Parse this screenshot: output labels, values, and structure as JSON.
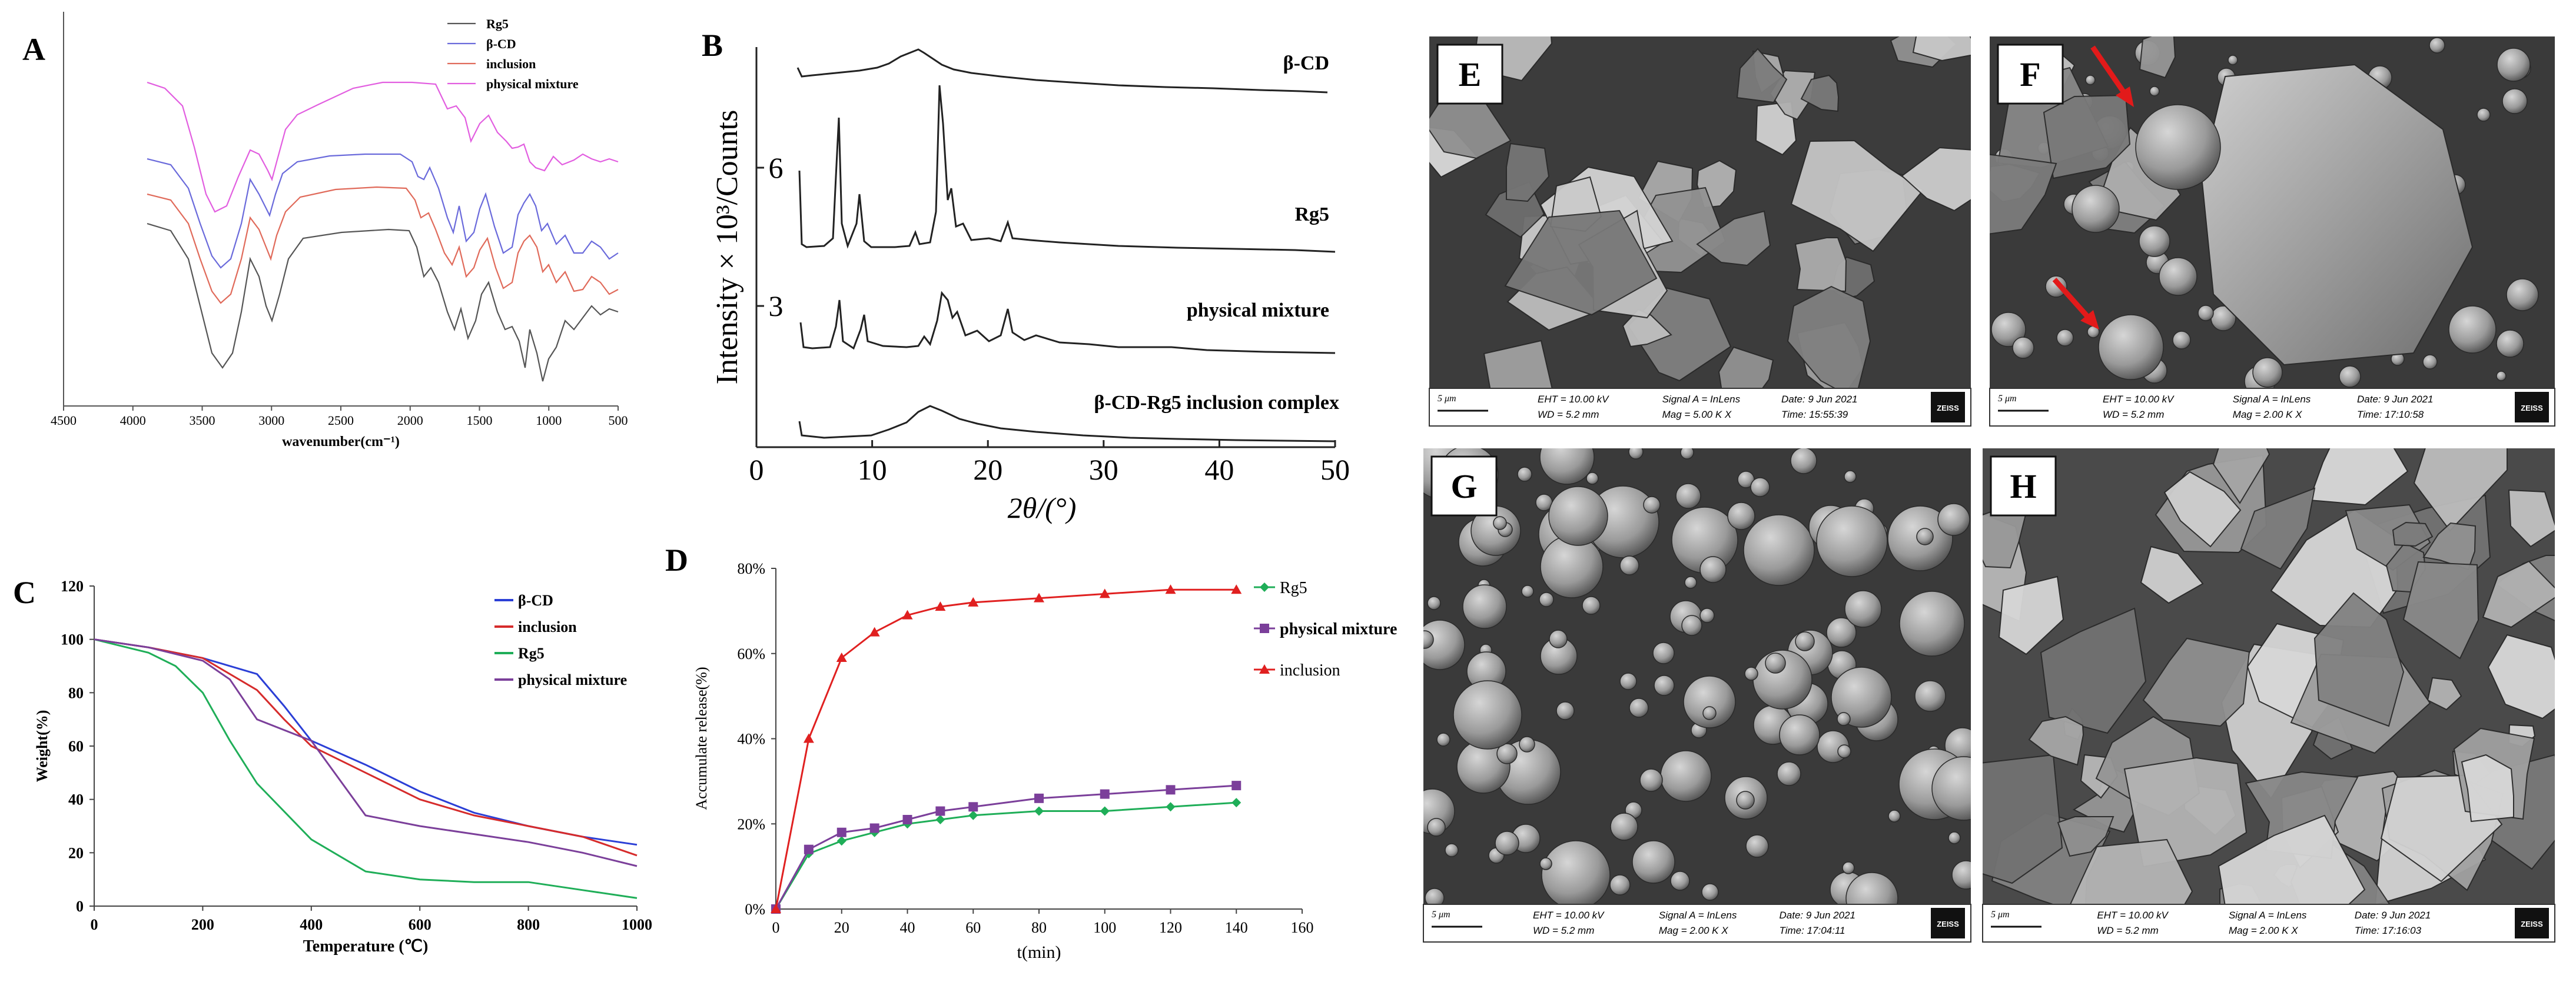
{
  "panels": {
    "A": {
      "label": "A",
      "xlabel": "wavenumber(cm⁻¹)",
      "xticks": [
        "4500",
        "4000",
        "3500",
        "3000",
        "2500",
        "2000",
        "1500",
        "1000",
        "500"
      ],
      "legend": [
        "Rg5",
        "β-CD",
        "inclusion",
        "physical mixture"
      ],
      "colors": {
        "Rg5": "#555555",
        "β-CD": "#6a6adb",
        "inclusion": "#e06a5a",
        "physical mixture": "#e25ee0"
      }
    },
    "B": {
      "label": "B",
      "ylabel": "Intensity × 10³/Counts",
      "xlabel": "2θ/(°)",
      "xticks": [
        "0",
        "10",
        "20",
        "30",
        "40",
        "50"
      ],
      "yticks": [
        "3",
        "6"
      ],
      "traces": [
        "β-CD",
        "Rg5",
        "physical mixture",
        "β-CD-Rg5 inclusion complex"
      ]
    },
    "C": {
      "label": "C",
      "ylabel": "Weight(%)",
      "xlabel": "Temperature (℃)",
      "xticks": [
        "0",
        "200",
        "400",
        "600",
        "800",
        "1000"
      ],
      "yticks": [
        "0",
        "20",
        "40",
        "60",
        "80",
        "100",
        "120"
      ],
      "legend": [
        "β-CD",
        "inclusion",
        "Rg5",
        "physical mixture"
      ],
      "colors": {
        "β-CD": "#2b3fd6",
        "inclusion": "#d62b2b",
        "Rg5": "#1fae58",
        "physical mixture": "#7b3f9a"
      }
    },
    "D": {
      "label": "D",
      "ylabel": "Accumulate release(%)",
      "xlabel": "t(min)",
      "xticks": [
        "0",
        "20",
        "40",
        "60",
        "80",
        "100",
        "120",
        "140",
        "160"
      ],
      "yticks": [
        "0%",
        "20%",
        "40%",
        "60%",
        "80%"
      ],
      "legend": [
        "Rg5",
        "physical mixture",
        "inclusion"
      ],
      "colors": {
        "Rg5": "#1fae58",
        "physical mixture": "#7b3f9a",
        "inclusion": "#e02020"
      }
    },
    "sem": [
      {
        "label": "E",
        "scale": "5 μm",
        "eht": "EHT = 10.00 kV",
        "wd": "WD =  5.2 mm",
        "signal": "Signal A = InLens",
        "mag": "Mag =   5.00 K X",
        "date": "Date: 9 Jun 2021",
        "time": "Time: 15:55:39",
        "brand": "ZEISS"
      },
      {
        "label": "F",
        "scale": "5 μm",
        "eht": "EHT = 10.00 kV",
        "wd": "WD =  5.2 mm",
        "signal": "Signal A = InLens",
        "mag": "Mag =   2.00 K X",
        "date": "Date: 9 Jun 2021",
        "time": "Time: 17:10:58",
        "brand": "ZEISS"
      },
      {
        "label": "G",
        "scale": "5 μm",
        "eht": "EHT = 10.00 kV",
        "wd": "WD =  5.2 mm",
        "signal": "Signal A = InLens",
        "mag": "Mag =   2.00 K X",
        "date": "Date: 9 Jun 2021",
        "time": "Time: 17:04:11",
        "brand": "ZEISS"
      },
      {
        "label": "H",
        "scale": "5 μm",
        "eht": "EHT = 10.00 kV",
        "wd": "WD =  5.2 mm",
        "signal": "Signal A = InLens",
        "mag": "Mag =   2.00 K X",
        "date": "Date: 9 Jun 2021",
        "time": "Time: 17:16:03",
        "brand": "ZEISS"
      }
    ]
  },
  "chart_data": [
    {
      "type": "line",
      "panel": "C",
      "xlabel": "Temperature (℃)",
      "ylabel": "Weight(%)",
      "xlim": [
        0,
        1000
      ],
      "ylim": [
        0,
        120
      ],
      "series": [
        {
          "name": "β-CD",
          "x": [
            0,
            100,
            200,
            300,
            350,
            400,
            500,
            600,
            700,
            800,
            900,
            1000
          ],
          "values": [
            100,
            97,
            93,
            87,
            75,
            62,
            53,
            43,
            35,
            30,
            26,
            23
          ]
        },
        {
          "name": "inclusion",
          "x": [
            0,
            100,
            200,
            300,
            350,
            400,
            500,
            600,
            700,
            800,
            900,
            1000
          ],
          "values": [
            100,
            97,
            93,
            81,
            70,
            60,
            50,
            40,
            34,
            30,
            26,
            19
          ]
        },
        {
          "name": "Rg5",
          "x": [
            0,
            100,
            150,
            200,
            250,
            300,
            400,
            500,
            600,
            700,
            800,
            900,
            1000
          ],
          "values": [
            100,
            95,
            90,
            80,
            62,
            46,
            25,
            13,
            10,
            9,
            9,
            6,
            3
          ]
        },
        {
          "name": "physical mixture",
          "x": [
            0,
            100,
            200,
            250,
            300,
            400,
            450,
            500,
            600,
            700,
            800,
            900,
            1000
          ],
          "values": [
            100,
            97,
            92,
            85,
            70,
            62,
            48,
            34,
            30,
            27,
            24,
            20,
            15
          ]
        }
      ]
    },
    {
      "type": "line",
      "panel": "D",
      "xlabel": "t(min)",
      "ylabel": "Accumulate release(%)",
      "xlim": [
        0,
        160
      ],
      "ylim": [
        0,
        80
      ],
      "x": [
        0,
        10,
        20,
        30,
        40,
        50,
        60,
        80,
        100,
        120,
        140
      ],
      "series": [
        {
          "name": "Rg5",
          "values": [
            0,
            13,
            16,
            18,
            20,
            21,
            22,
            23,
            23,
            24,
            25
          ]
        },
        {
          "name": "physical mixture",
          "values": [
            0,
            14,
            18,
            19,
            21,
            23,
            24,
            26,
            27,
            28,
            29
          ]
        },
        {
          "name": "inclusion",
          "values": [
            0,
            40,
            59,
            65,
            69,
            71,
            72,
            73,
            74,
            75,
            75
          ]
        }
      ]
    }
  ]
}
